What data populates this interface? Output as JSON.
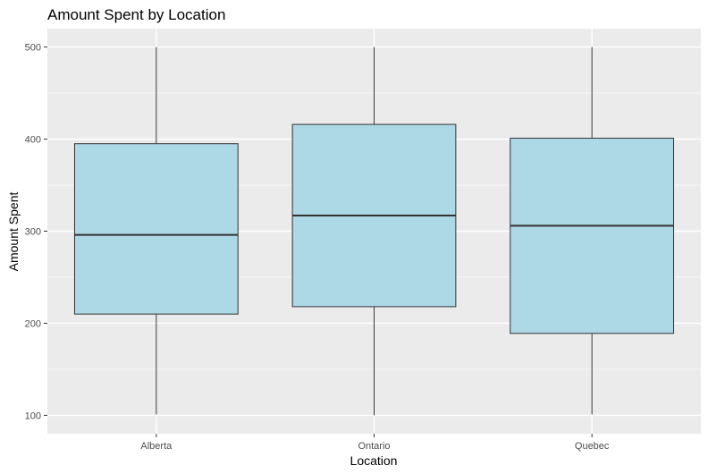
{
  "chart_data": {
    "type": "boxplot",
    "title": "Amount Spent by Location",
    "xlabel": "Location",
    "ylabel": "Amount Spent",
    "categories": [
      "Alberta",
      "Ontario",
      "Quebec"
    ],
    "boxes": [
      {
        "category": "Alberta",
        "min": 101,
        "q1": 210,
        "median": 296,
        "q3": 395,
        "max": 500
      },
      {
        "category": "Ontario",
        "min": 100,
        "q1": 218,
        "median": 317,
        "q3": 416,
        "max": 500
      },
      {
        "category": "Quebec",
        "min": 101,
        "q1": 189,
        "median": 306,
        "q3": 401,
        "max": 500
      }
    ],
    "yticks": [
      100,
      200,
      300,
      400,
      500
    ],
    "ylim": [
      80,
      520
    ],
    "grid": true,
    "legend": "none",
    "colors": {
      "panel_background": "#ebebeb",
      "grid_major": "#ffffff",
      "grid_minor": "#f5f5f5",
      "box_fill": "#add8e6",
      "box_line": "#333333"
    }
  }
}
